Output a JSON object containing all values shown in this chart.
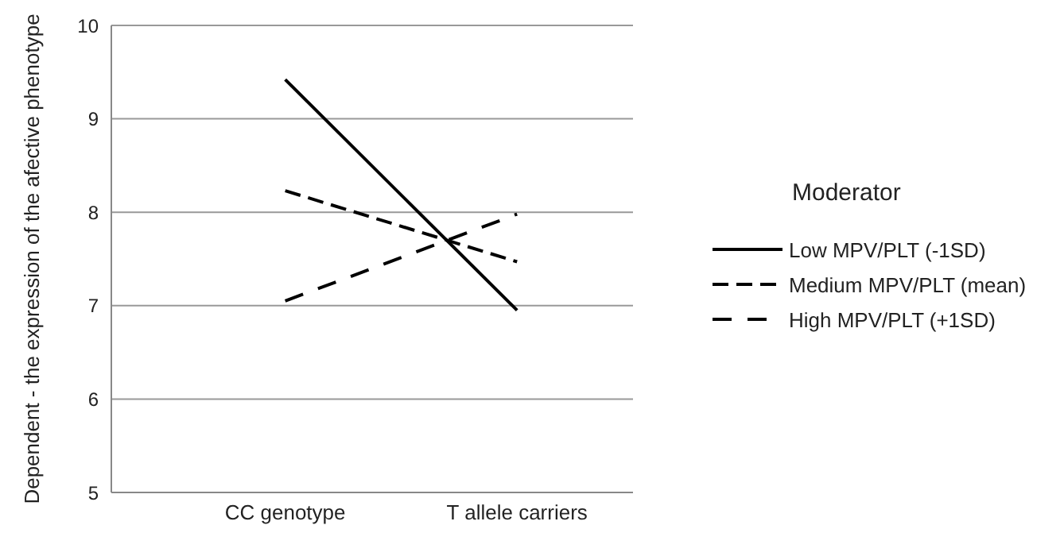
{
  "chart_data": {
    "type": "line",
    "ylabel": "Dependent - the expression of the afective phenotype",
    "legend_title": "Moderator",
    "categories": [
      "CC genotype",
      "T allele carriers"
    ],
    "series": [
      {
        "name": "Low MPV/PLT (-1SD)",
        "color": "#000000",
        "values": [
          9.42,
          6.95
        ],
        "line_style": "solid"
      },
      {
        "name": "Medium MPV/PLT (mean)",
        "color": "#000000",
        "values": [
          8.23,
          7.47
        ],
        "line_style": "dashed"
      },
      {
        "name": "High MPV/PLT (+1SD)",
        "color": "#000000",
        "values": [
          7.05,
          7.98
        ],
        "line_style": "dashed"
      }
    ],
    "ylim": [
      5,
      10
    ],
    "yticks": [
      5,
      6,
      7,
      8,
      9,
      10
    ],
    "grid": "y",
    "legend": "right",
    "marker": "none"
  }
}
